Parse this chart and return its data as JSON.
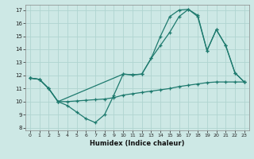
{
  "xlabel": "Humidex (Indice chaleur)",
  "bg_color": "#cde8e5",
  "grid_color": "#b0d4d0",
  "line_color": "#1e7a6e",
  "xlim": [
    -0.5,
    23.5
  ],
  "ylim": [
    7.8,
    17.4
  ],
  "xticks": [
    0,
    1,
    2,
    3,
    4,
    5,
    6,
    7,
    8,
    9,
    10,
    11,
    12,
    13,
    14,
    15,
    16,
    17,
    18,
    19,
    20,
    21,
    22,
    23
  ],
  "yticks": [
    8,
    9,
    10,
    11,
    12,
    13,
    14,
    15,
    16,
    17
  ],
  "line1_x": [
    0,
    1,
    2,
    3,
    4,
    5,
    6,
    7,
    8,
    9,
    10,
    11,
    12,
    13,
    14,
    15,
    16,
    17,
    18,
    19,
    20,
    21,
    22,
    23
  ],
  "line1_y": [
    11.8,
    11.7,
    11.0,
    10.0,
    9.7,
    9.2,
    8.7,
    8.4,
    9.0,
    10.5,
    12.1,
    12.05,
    12.1,
    13.3,
    15.0,
    16.5,
    17.0,
    17.05,
    16.5,
    13.9,
    15.5,
    14.3,
    12.2,
    11.5
  ],
  "line2_x": [
    0,
    1,
    2,
    3,
    4,
    5,
    6,
    7,
    8,
    9,
    10,
    11,
    12,
    13,
    14,
    15,
    16,
    17,
    18,
    19,
    20,
    21,
    22,
    23
  ],
  "line2_y": [
    11.8,
    11.7,
    11.0,
    10.0,
    10.0,
    10.05,
    10.1,
    10.15,
    10.2,
    10.3,
    10.5,
    10.6,
    10.7,
    10.8,
    10.9,
    11.0,
    11.15,
    11.25,
    11.35,
    11.45,
    11.5,
    11.5,
    11.5,
    11.5
  ],
  "line3_x": [
    0,
    1,
    2,
    3,
    10,
    11,
    12,
    13,
    14,
    15,
    16,
    17,
    18,
    19,
    20,
    21,
    22,
    23
  ],
  "line3_y": [
    11.8,
    11.7,
    11.0,
    10.0,
    12.1,
    12.05,
    12.1,
    13.3,
    14.3,
    15.3,
    16.5,
    17.05,
    16.6,
    13.9,
    15.5,
    14.3,
    12.2,
    11.5
  ]
}
